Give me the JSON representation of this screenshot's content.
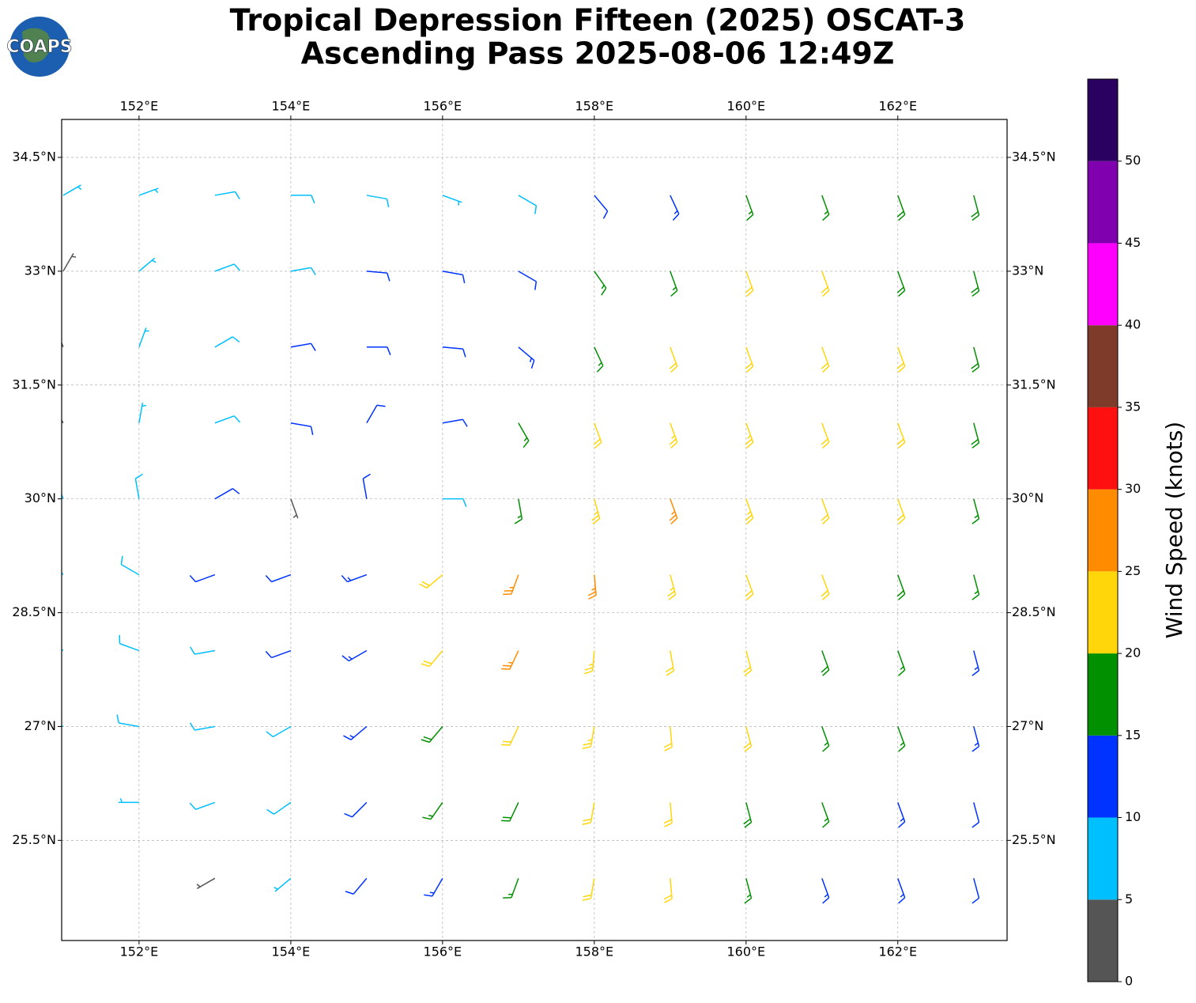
{
  "chart_data": {
    "type": "barbs",
    "logo": "COAPS",
    "title": "Tropical Depression Fifteen (2025) OSCAT-3",
    "subtitle": "Ascending Pass 2025-08-06 12:49Z",
    "xlim": [
      150.98,
      163.44
    ],
    "ylim": [
      24.18,
      35
    ],
    "xticks": [
      {
        "value": 152,
        "label": "152°E"
      },
      {
        "value": 154,
        "label": "154°E"
      },
      {
        "value": 156,
        "label": "156°E"
      },
      {
        "value": 158,
        "label": "158°E"
      },
      {
        "value": 160,
        "label": "160°E"
      },
      {
        "value": 162,
        "label": "162°E"
      }
    ],
    "yticks": [
      {
        "value": 25.5,
        "label": "25.5°N"
      },
      {
        "value": 27,
        "label": "27°N"
      },
      {
        "value": 28.5,
        "label": "28.5°N"
      },
      {
        "value": 30,
        "label": "30°N"
      },
      {
        "value": 31.5,
        "label": "31.5°N"
      },
      {
        "value": 33,
        "label": "33°N"
      },
      {
        "value": 34.5,
        "label": "34.5°N"
      }
    ],
    "grid": true,
    "lon": [
      151,
      152,
      153,
      154,
      155,
      156,
      157,
      158,
      159,
      160,
      161,
      162,
      163
    ],
    "lat": [
      34,
      33,
      32,
      31,
      30,
      29,
      28,
      27,
      26,
      25
    ],
    "speed": [
      [
        7,
        7,
        8,
        9,
        8,
        7,
        8,
        10,
        13,
        16,
        17,
        18,
        18
      ],
      [
        4,
        7,
        8,
        9,
        10,
        11,
        12,
        15,
        17,
        20,
        20,
        19,
        18
      ],
      [
        3,
        5,
        8,
        10,
        12,
        12,
        14,
        17,
        20,
        21,
        21,
        20,
        18
      ],
      [
        4,
        6,
        9,
        11,
        12,
        11,
        17,
        22,
        24,
        23,
        21,
        20,
        19
      ],
      [
        6,
        9,
        10,
        4,
        11,
        8,
        16,
        24,
        25,
        23,
        22,
        20,
        17
      ],
      [
        7,
        9,
        11,
        12,
        13,
        20,
        27,
        25,
        23,
        22,
        21,
        19,
        16
      ],
      [
        7,
        8,
        9,
        11,
        14,
        22,
        26,
        23,
        22,
        21,
        19,
        16,
        14
      ],
      [
        6,
        8,
        8,
        9,
        13,
        18,
        21,
        23,
        22,
        20,
        17,
        15,
        13
      ],
      [
        null,
        7,
        8,
        9,
        12,
        15,
        19,
        21,
        20,
        18,
        15,
        14,
        12
      ],
      [
        null,
        null,
        4,
        6,
        10,
        13,
        17,
        20,
        20,
        17,
        14,
        13,
        12
      ]
    ],
    "direction": [
      [
        60,
        70,
        80,
        90,
        100,
        110,
        120,
        140,
        155,
        160,
        160,
        160,
        165
      ],
      [
        30,
        50,
        70,
        80,
        95,
        100,
        120,
        145,
        160,
        160,
        160,
        160,
        165
      ],
      [
        340,
        20,
        60,
        80,
        90,
        95,
        130,
        155,
        160,
        160,
        160,
        160,
        165
      ],
      [
        330,
        10,
        70,
        100,
        30,
        80,
        150,
        160,
        160,
        160,
        160,
        160,
        165
      ],
      [
        340,
        350,
        60,
        160,
        350,
        90,
        170,
        165,
        160,
        160,
        160,
        160,
        165
      ],
      [
        320,
        300,
        250,
        250,
        250,
        230,
        200,
        175,
        165,
        160,
        160,
        160,
        165
      ],
      [
        310,
        290,
        260,
        250,
        240,
        220,
        205,
        185,
        170,
        165,
        160,
        160,
        165
      ],
      [
        300,
        280,
        260,
        240,
        230,
        220,
        205,
        190,
        175,
        165,
        160,
        160,
        165
      ],
      [
        null,
        270,
        250,
        235,
        225,
        215,
        205,
        190,
        175,
        165,
        160,
        160,
        165
      ],
      [
        null,
        null,
        240,
        230,
        220,
        210,
        200,
        190,
        175,
        165,
        160,
        160,
        165
      ]
    ],
    "colorbar": {
      "label": "Wind Speed (knots)",
      "clim": [
        0,
        55
      ],
      "bounds": [
        0,
        5,
        10,
        15,
        20,
        25,
        30,
        35,
        40,
        45,
        50,
        55
      ],
      "ticks": [
        0,
        5,
        10,
        15,
        20,
        25,
        30,
        35,
        40,
        45,
        50
      ],
      "colors": [
        "#555555",
        "#00bfff",
        "#0033ff",
        "#009000",
        "#ffd60a",
        "#ff8c00",
        "#ff1010",
        "#7f3b2a",
        "#ff00ff",
        "#8000b0",
        "#2a0060"
      ]
    }
  }
}
